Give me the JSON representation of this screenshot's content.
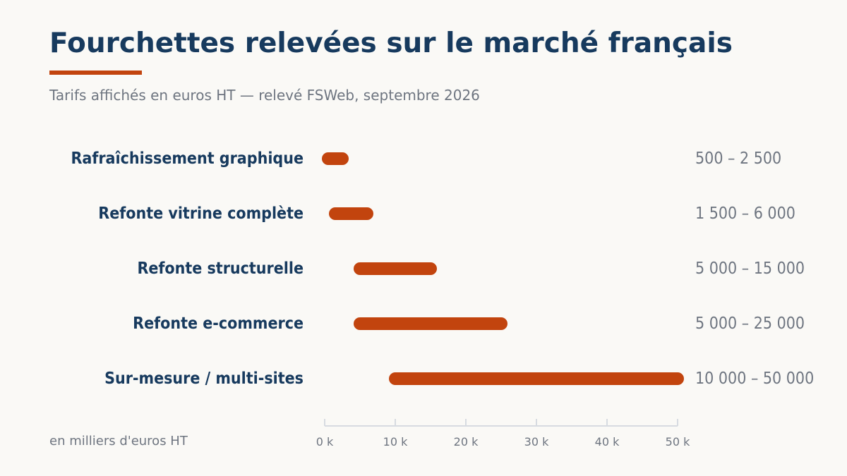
{
  "title": "Fourchettes relevées sur le marché français",
  "subtitle": "Tarifs affichés en euros HT — relevé FSWeb, septembre 2026",
  "unit_note": "en milliers d'euros HT",
  "colors": {
    "accent": "#c2440e",
    "title": "#173a5e",
    "muted": "#6e7580",
    "axis": "#d7dbe1",
    "background": "#faf9f6"
  },
  "chart_data": {
    "type": "bar",
    "orientation": "horizontal",
    "range_bars": true,
    "categories": [
      "Rafraîchissement graphique",
      "Refonte vitrine complète",
      "Refonte structurelle",
      "Refonte e-commerce",
      "Sur-mesure / multi-sites"
    ],
    "series": [
      {
        "low": [
          500,
          1500,
          5000,
          5000,
          10000
        ],
        "high": [
          2500,
          6000,
          15000,
          25000,
          50000
        ],
        "labels": [
          "500 – 2 500",
          "1 500 – 6 000",
          "5 000 – 15 000",
          "5 000 – 25 000",
          "10 000 – 50 000"
        ]
      }
    ],
    "xlim": [
      0,
      50000
    ],
    "xticks": [
      0,
      10000,
      20000,
      30000,
      40000,
      50000
    ],
    "xtick_labels": [
      "0 k",
      "10 k",
      "20 k",
      "30 k",
      "40 k",
      "50 k"
    ],
    "grid": false,
    "legend": "none"
  }
}
